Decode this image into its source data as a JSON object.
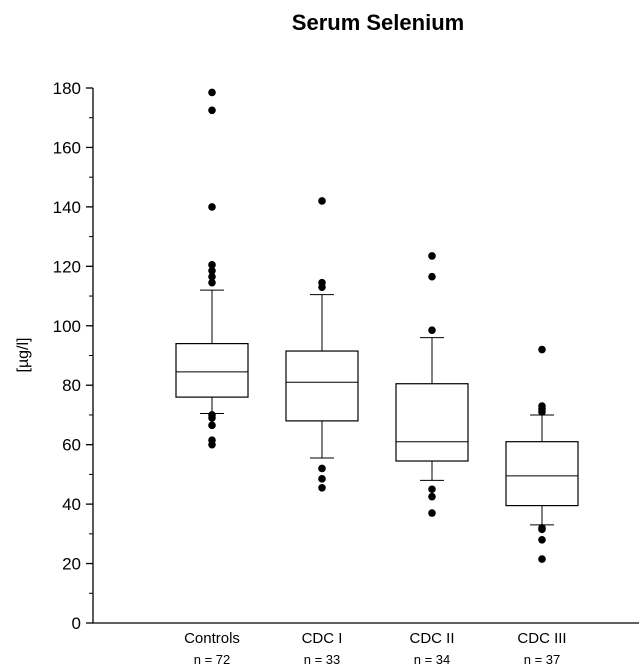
{
  "chart_data": {
    "type": "box",
    "title": "Serum Selenium",
    "ylabel": "[µg/l]",
    "ylim": [
      0,
      180
    ],
    "yticks": [
      0,
      20,
      40,
      60,
      80,
      100,
      120,
      140,
      160,
      180
    ],
    "yticks_minor": [
      10,
      30,
      50,
      70,
      90,
      110,
      130,
      150,
      170
    ],
    "grid": false,
    "categories": [
      {
        "label": "Controls",
        "n_label": "n = 72",
        "whisker_low": 70.5,
        "q1": 76,
        "median": 84.5,
        "q3": 94,
        "whisker_high": 112,
        "outliers": [
          60,
          61.5,
          66.5,
          69,
          70,
          114.5,
          116.5,
          118.5,
          120.5,
          140,
          172.5,
          178.5
        ]
      },
      {
        "label": "CDC I",
        "n_label": "n = 33",
        "whisker_low": 55.5,
        "q1": 68,
        "median": 81,
        "q3": 91.5,
        "whisker_high": 110.5,
        "outliers": [
          45.5,
          48.5,
          52,
          113,
          114.5,
          142
        ]
      },
      {
        "label": "CDC II",
        "n_label": "n = 34",
        "whisker_low": 48,
        "q1": 54.5,
        "median": 61,
        "q3": 80.5,
        "whisker_high": 96,
        "outliers": [
          37,
          42.5,
          45,
          98.5,
          116.5,
          123.5
        ]
      },
      {
        "label": "CDC III",
        "n_label": "n = 37",
        "whisker_low": 33,
        "q1": 39.5,
        "median": 49.5,
        "q3": 61,
        "whisker_high": 70,
        "outliers": [
          21.5,
          28,
          31.5,
          32,
          71,
          72,
          73,
          92
        ]
      }
    ]
  }
}
